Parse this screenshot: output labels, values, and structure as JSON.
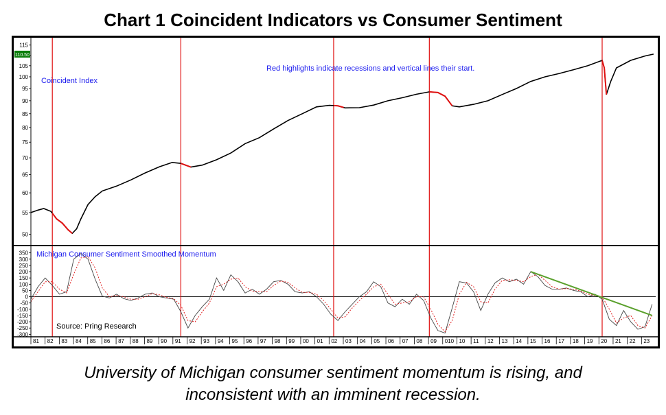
{
  "title": "Chart 1 Coincident Indicators vs Consumer Sentiment",
  "caption": {
    "line1": "University of Michigan consumer sentiment momentum is rising, and",
    "line2": "inconsistent with an imminent recession."
  },
  "chart_data": [
    {
      "type": "line",
      "panel": "top",
      "annotation_series": "Coincident Index",
      "annotation_note": "Red highlights indicate recessions and vertical lines their start.",
      "y_scale": "log",
      "ylim": [
        48,
        117
      ],
      "yticks": [
        50,
        55,
        60,
        65,
        70,
        75,
        80,
        85,
        90,
        95,
        100,
        105,
        110,
        115
      ],
      "current_value_label": "110.50",
      "series": [
        {
          "color": "#000000",
          "x": [
            1980.0,
            1980.5,
            1980.9,
            1981.4,
            1981.8,
            1982.2,
            1982.6,
            1982.9,
            1983.2,
            1983.5,
            1984.0,
            1984.5,
            1985.0,
            1986.0,
            1987.0,
            1988.0,
            1989.0,
            1989.9,
            1990.5,
            1991.2,
            1992.0,
            1993.0,
            1994.0,
            1995.0,
            1996.0,
            1997.0,
            1998.0,
            1999.0,
            2000.0,
            2000.9,
            2001.5,
            2002.0,
            2003.0,
            2004.0,
            2005.0,
            2006.0,
            2007.0,
            2007.9,
            2008.5,
            2009.0,
            2009.5,
            2010.0,
            2011.0,
            2012.0,
            2013.0,
            2014.0,
            2015.0,
            2016.0,
            2017.0,
            2018.0,
            2019.0,
            2020.0,
            2020.15,
            2020.3,
            2020.6,
            2021.0,
            2022.0,
            2023.0,
            2023.6
          ],
          "y": [
            55.0,
            55.6,
            56.0,
            55.3,
            53.5,
            52.5,
            51.0,
            50.2,
            51.2,
            53.5,
            57.0,
            59.0,
            60.5,
            61.8,
            63.5,
            65.5,
            67.3,
            68.6,
            68.3,
            67.2,
            67.8,
            69.4,
            71.5,
            74.5,
            76.5,
            79.5,
            82.5,
            85.0,
            87.6,
            88.2,
            88.0,
            87.2,
            87.3,
            88.3,
            90.0,
            91.2,
            92.6,
            93.6,
            93.3,
            91.8,
            88.0,
            87.6,
            88.6,
            90.0,
            92.5,
            95.0,
            98.0,
            100.0,
            101.5,
            103.2,
            105.0,
            107.5,
            104.0,
            92.5,
            98.0,
            104.0,
            107.5,
            109.6,
            110.5
          ]
        }
      ],
      "recession_segments": [
        [
          1981.5,
          1982.9
        ],
        [
          1990.5,
          1991.2
        ],
        [
          2001.2,
          2001.9
        ],
        [
          2007.9,
          2009.5
        ],
        [
          2020.0,
          2020.3
        ]
      ],
      "recession_start_lines": [
        1981.5,
        1990.5,
        2001.2,
        2007.9,
        2020.0
      ]
    },
    {
      "type": "line",
      "panel": "bottom",
      "annotation_series": "Michigan Consumer Sentiment Smoothed Momentum",
      "source": "Source: Pring Research",
      "ylim": [
        -320,
        370
      ],
      "yticks": [
        -300,
        -250,
        -200,
        -150,
        -100,
        -50,
        0,
        50,
        100,
        150,
        200,
        250,
        300,
        350
      ],
      "series": [
        {
          "style": "solid",
          "color": "#444444",
          "x": [
            1980.0,
            1980.5,
            1981.0,
            1981.5,
            1982.0,
            1982.5,
            1983.0,
            1983.5,
            1984.0,
            1984.5,
            1985.0,
            1985.5,
            1986.0,
            1986.5,
            1987.0,
            1987.5,
            1988.0,
            1988.5,
            1989.0,
            1989.5,
            1990.0,
            1990.5,
            1991.0,
            1991.5,
            1992.0,
            1992.5,
            1993.0,
            1993.5,
            1994.0,
            1994.5,
            1995.0,
            1995.5,
            1996.0,
            1996.5,
            1997.0,
            1997.5,
            1998.0,
            1998.5,
            1999.0,
            1999.5,
            2000.0,
            2000.5,
            2001.0,
            2001.5,
            2002.0,
            2002.5,
            2003.0,
            2003.5,
            2004.0,
            2004.5,
            2005.0,
            2005.5,
            2006.0,
            2006.5,
            2007.0,
            2007.5,
            2008.0,
            2008.5,
            2009.0,
            2009.5,
            2010.0,
            2010.5,
            2011.0,
            2011.5,
            2012.0,
            2012.5,
            2013.0,
            2013.5,
            2014.0,
            2014.5,
            2015.0,
            2015.5,
            2016.0,
            2016.5,
            2017.0,
            2017.5,
            2018.0,
            2018.5,
            2019.0,
            2019.5,
            2020.0,
            2020.5,
            2021.0,
            2021.5,
            2022.0,
            2022.5,
            2023.0,
            2023.5
          ],
          "y": [
            -20,
            80,
            150,
            90,
            20,
            40,
            300,
            345,
            300,
            140,
            5,
            -10,
            20,
            -15,
            -30,
            -10,
            20,
            30,
            0,
            -10,
            -20,
            -120,
            -250,
            -150,
            -80,
            -20,
            150,
            50,
            175,
            120,
            30,
            60,
            20,
            60,
            120,
            130,
            100,
            40,
            30,
            40,
            0,
            -60,
            -140,
            -190,
            -120,
            -60,
            0,
            40,
            120,
            80,
            -50,
            -80,
            -20,
            -60,
            20,
            -30,
            -170,
            -270,
            -290,
            -90,
            120,
            110,
            40,
            -110,
            20,
            110,
            150,
            120,
            140,
            100,
            200,
            160,
            90,
            60,
            60,
            70,
            50,
            40,
            0,
            20,
            -20,
            -180,
            -230,
            -110,
            -200,
            -260,
            -240,
            -60
          ]
        },
        {
          "style": "dotted",
          "color": "#e02020",
          "x": [
            1980.0,
            1980.5,
            1981.0,
            1981.5,
            1982.0,
            1982.5,
            1983.0,
            1983.5,
            1984.0,
            1984.5,
            1985.0,
            1985.5,
            1986.0,
            1986.5,
            1987.0,
            1987.5,
            1988.0,
            1988.5,
            1989.0,
            1989.5,
            1990.0,
            1990.5,
            1991.0,
            1991.5,
            1992.0,
            1992.5,
            1993.0,
            1993.5,
            1994.0,
            1994.5,
            1995.0,
            1995.5,
            1996.0,
            1996.5,
            1997.0,
            1997.5,
            1998.0,
            1998.5,
            1999.0,
            1999.5,
            2000.0,
            2000.5,
            2001.0,
            2001.5,
            2002.0,
            2002.5,
            2003.0,
            2003.5,
            2004.0,
            2004.5,
            2005.0,
            2005.5,
            2006.0,
            2006.5,
            2007.0,
            2007.5,
            2008.0,
            2008.5,
            2009.0,
            2009.5,
            2010.0,
            2010.5,
            2011.0,
            2011.5,
            2012.0,
            2012.5,
            2013.0,
            2013.5,
            2014.0,
            2014.5,
            2015.0,
            2015.5,
            2016.0,
            2016.5,
            2017.0,
            2017.5,
            2018.0,
            2018.5,
            2019.0,
            2019.5,
            2020.0,
            2020.5,
            2021.0,
            2021.5,
            2022.0,
            2022.5,
            2023.0,
            2023.5
          ],
          "y": [
            -40,
            40,
            120,
            120,
            60,
            30,
            180,
            310,
            320,
            230,
            70,
            0,
            10,
            0,
            -20,
            -20,
            0,
            25,
            15,
            -5,
            -15,
            -70,
            -190,
            -200,
            -120,
            -50,
            80,
            100,
            140,
            150,
            80,
            45,
            40,
            40,
            90,
            125,
            115,
            70,
            35,
            35,
            20,
            -30,
            -100,
            -170,
            -160,
            -90,
            -30,
            20,
            80,
            100,
            20,
            -60,
            -50,
            -40,
            0,
            0,
            -100,
            -220,
            -280,
            -190,
            20,
            115,
            80,
            -40,
            -50,
            60,
            130,
            135,
            130,
            120,
            160,
            180,
            130,
            80,
            60,
            65,
            60,
            45,
            20,
            10,
            0,
            -100,
            -210,
            -170,
            -150,
            -230,
            -250,
            -150
          ]
        }
      ],
      "trendline": {
        "color": "#5aa02c",
        "x": [
          2015.0,
          2023.5
        ],
        "y": [
          200,
          -150
        ]
      },
      "zero_line": 0
    }
  ],
  "x_axis": {
    "tick_labels": [
      "81",
      "82",
      "83",
      "84",
      "85",
      "86",
      "87",
      "88",
      "89",
      "90",
      "91",
      "92",
      "93",
      "94",
      "95",
      "96",
      "97",
      "98",
      "99",
      "00",
      "01",
      "02",
      "03",
      "04",
      "05",
      "06",
      "07",
      "08",
      "09",
      "010",
      "10",
      "11",
      "12",
      "13",
      "14",
      "15",
      "16",
      "17",
      "18",
      "19",
      "20",
      "21",
      "22",
      "23"
    ]
  }
}
